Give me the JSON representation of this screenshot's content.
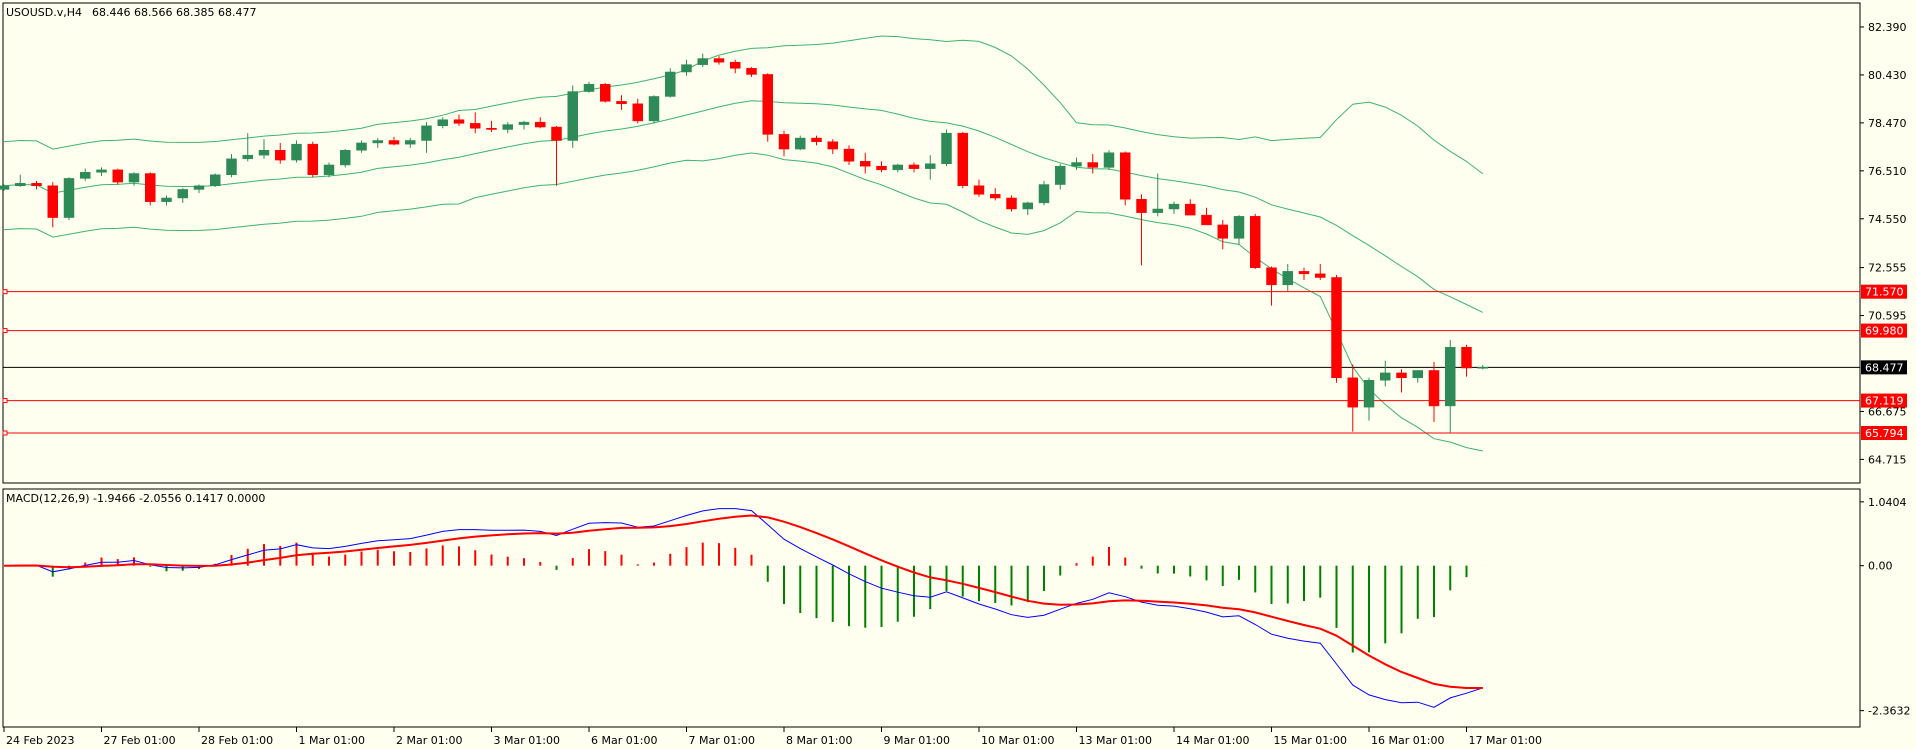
{
  "header": {
    "symbol": "USOUSD.v,H4",
    "ohlc": "68.446 68.566 68.385 68.477",
    "indicator": "MACD(12,26,9) -1.9466 -2.0556 0.1417 0.0000"
  },
  "colors": {
    "background": "#fffff0",
    "bull": "#2e8b57",
    "bear": "#ff0000",
    "band": "#3cb371",
    "level": "#ff0000",
    "price_line": "#000000",
    "macd_line": "#0000ff",
    "signal_line": "#ff0000",
    "hist_pos": "#ff0000",
    "hist_neg": "#008000"
  },
  "chart_data": [
    {
      "type": "candlestick",
      "title": "USOUSD.v,H4",
      "ylim": [
        63.75,
        83.37
      ],
      "y_ticks": [
        "82.390",
        "80.430",
        "78.470",
        "76.510",
        "74.550",
        "72.555",
        "70.595",
        "66.675",
        "64.715"
      ],
      "x_ticks": [
        "24 Feb 2023",
        "27 Feb 01:00",
        "28 Feb 01:00",
        "1 Mar 01:00",
        "2 Mar 01:00",
        "3 Mar 01:00",
        "6 Mar 01:00",
        "7 Mar 01:00",
        "8 Mar 01:00",
        "9 Mar 01:00",
        "10 Mar 01:00",
        "13 Mar 01:00",
        "14 Mar 01:00",
        "15 Mar 01:00",
        "16 Mar 01:00",
        "17 Mar 01:00"
      ],
      "levels": [
        "71.570",
        "69.980",
        "67.119",
        "65.794"
      ],
      "current_price": "68.477",
      "candles": [
        [
          75.75,
          75.95,
          75.7,
          75.9
        ],
        [
          75.9,
          76.35,
          75.85,
          76.0
        ],
        [
          76.0,
          76.1,
          75.75,
          75.9
        ],
        [
          75.9,
          76.05,
          74.2,
          74.6
        ],
        [
          74.6,
          76.25,
          74.5,
          76.2
        ],
        [
          76.2,
          76.6,
          76.1,
          76.45
        ],
        [
          76.45,
          76.65,
          76.3,
          76.55
        ],
        [
          76.55,
          76.6,
          75.95,
          76.05
        ],
        [
          76.05,
          76.45,
          75.9,
          76.4
        ],
        [
          76.4,
          76.45,
          75.1,
          75.25
        ],
        [
          75.25,
          75.5,
          75.1,
          75.4
        ],
        [
          75.4,
          75.8,
          75.2,
          75.75
        ],
        [
          75.75,
          75.95,
          75.6,
          75.9
        ],
        [
          75.9,
          76.4,
          75.85,
          76.35
        ],
        [
          76.35,
          77.2,
          76.25,
          77.0
        ],
        [
          77.0,
          78.05,
          76.9,
          77.15
        ],
        [
          77.15,
          77.8,
          77.0,
          77.35
        ],
        [
          77.35,
          77.65,
          76.8,
          76.95
        ],
        [
          76.95,
          77.75,
          76.85,
          77.6
        ],
        [
          77.6,
          77.7,
          76.25,
          76.35
        ],
        [
          76.35,
          76.85,
          76.25,
          76.75
        ],
        [
          76.75,
          77.4,
          76.65,
          77.35
        ],
        [
          77.35,
          77.75,
          77.25,
          77.65
        ],
        [
          77.65,
          77.85,
          77.45,
          77.75
        ],
        [
          77.75,
          77.9,
          77.55,
          77.6
        ],
        [
          77.6,
          77.85,
          77.45,
          77.75
        ],
        [
          77.75,
          78.5,
          77.25,
          78.35
        ],
        [
          78.35,
          78.7,
          78.25,
          78.6
        ],
        [
          78.6,
          78.8,
          78.35,
          78.45
        ],
        [
          78.45,
          78.9,
          78.05,
          78.25
        ],
        [
          78.25,
          78.55,
          78.1,
          78.2
        ],
        [
          78.2,
          78.5,
          78.05,
          78.4
        ],
        [
          78.4,
          78.55,
          78.2,
          78.5
        ],
        [
          78.5,
          78.7,
          78.25,
          78.3
        ],
        [
          78.3,
          78.35,
          75.9,
          77.75
        ],
        [
          77.75,
          80.0,
          77.45,
          79.75
        ],
        [
          79.75,
          80.15,
          79.7,
          80.05
        ],
        [
          80.05,
          80.1,
          79.3,
          79.35
        ],
        [
          79.35,
          79.6,
          79.0,
          79.25
        ],
        [
          79.25,
          79.45,
          78.45,
          78.55
        ],
        [
          78.55,
          79.6,
          78.45,
          79.55
        ],
        [
          79.55,
          80.7,
          79.5,
          80.55
        ],
        [
          80.55,
          81.05,
          80.4,
          80.85
        ],
        [
          80.85,
          81.3,
          80.75,
          81.1
        ],
        [
          81.1,
          81.2,
          80.85,
          80.95
        ],
        [
          80.95,
          81.05,
          80.5,
          80.7
        ],
        [
          80.7,
          80.75,
          80.35,
          80.45
        ],
        [
          80.45,
          80.5,
          77.7,
          78.0
        ],
        [
          78.0,
          78.15,
          77.1,
          77.4
        ],
        [
          77.4,
          77.95,
          77.35,
          77.85
        ],
        [
          77.85,
          77.95,
          77.55,
          77.7
        ],
        [
          77.7,
          77.8,
          77.2,
          77.4
        ],
        [
          77.4,
          77.55,
          76.75,
          76.9
        ],
        [
          76.9,
          77.25,
          76.4,
          76.7
        ],
        [
          76.7,
          76.9,
          76.45,
          76.55
        ],
        [
          76.55,
          76.8,
          76.45,
          76.75
        ],
        [
          76.75,
          76.85,
          76.45,
          76.6
        ],
        [
          76.6,
          77.15,
          76.15,
          76.8
        ],
        [
          76.8,
          78.2,
          76.7,
          78.05
        ],
        [
          78.05,
          78.1,
          75.8,
          75.9
        ],
        [
          75.9,
          76.15,
          75.45,
          75.55
        ],
        [
          75.55,
          75.8,
          75.3,
          75.4
        ],
        [
          75.4,
          75.5,
          74.85,
          74.95
        ],
        [
          74.95,
          75.25,
          74.7,
          75.2
        ],
        [
          75.2,
          76.1,
          75.1,
          75.95
        ],
        [
          75.95,
          76.8,
          75.75,
          76.7
        ],
        [
          76.7,
          77.05,
          76.55,
          76.85
        ],
        [
          76.85,
          77.2,
          76.4,
          76.65
        ],
        [
          76.65,
          77.35,
          76.55,
          77.25
        ],
        [
          77.25,
          77.3,
          75.1,
          75.35
        ],
        [
          75.35,
          75.55,
          72.65,
          74.8
        ],
        [
          74.8,
          76.4,
          74.65,
          74.95
        ],
        [
          74.95,
          75.25,
          74.75,
          75.15
        ],
        [
          75.15,
          75.35,
          74.7,
          74.7
        ],
        [
          74.7,
          75.0,
          74.35,
          74.3
        ],
        [
          74.3,
          74.5,
          73.3,
          73.75
        ],
        [
          73.75,
          74.7,
          73.5,
          74.65
        ],
        [
          74.65,
          74.75,
          72.5,
          72.55
        ],
        [
          72.55,
          72.6,
          71.0,
          71.85
        ],
        [
          71.85,
          72.7,
          71.6,
          72.4
        ],
        [
          72.4,
          72.55,
          72.05,
          72.3
        ],
        [
          72.3,
          72.7,
          72.05,
          72.15
        ],
        [
          72.15,
          72.25,
          67.85,
          68.05
        ],
        [
          68.05,
          68.6,
          65.85,
          66.85
        ],
        [
          66.85,
          68.05,
          66.3,
          67.95
        ],
        [
          67.95,
          68.75,
          67.7,
          68.25
        ],
        [
          68.25,
          68.4,
          67.45,
          68.05
        ],
        [
          68.05,
          68.35,
          67.85,
          68.35
        ],
        [
          68.35,
          68.7,
          66.25,
          66.9
        ],
        [
          66.9,
          69.6,
          65.8,
          69.3
        ],
        [
          69.3,
          69.4,
          68.1,
          68.45
        ],
        [
          68.45,
          68.57,
          68.39,
          68.48
        ]
      ]
    },
    {
      "type": "line+histogram",
      "title": "MACD(12,26,9)",
      "ylim": [
        -2.63,
        1.25
      ],
      "y_ticks": [
        "1.0404",
        "0.00",
        "-2.3632"
      ],
      "series_values": [
        "-1.9466",
        "-2.0556",
        "0.1417",
        "0.0000"
      ]
    }
  ]
}
